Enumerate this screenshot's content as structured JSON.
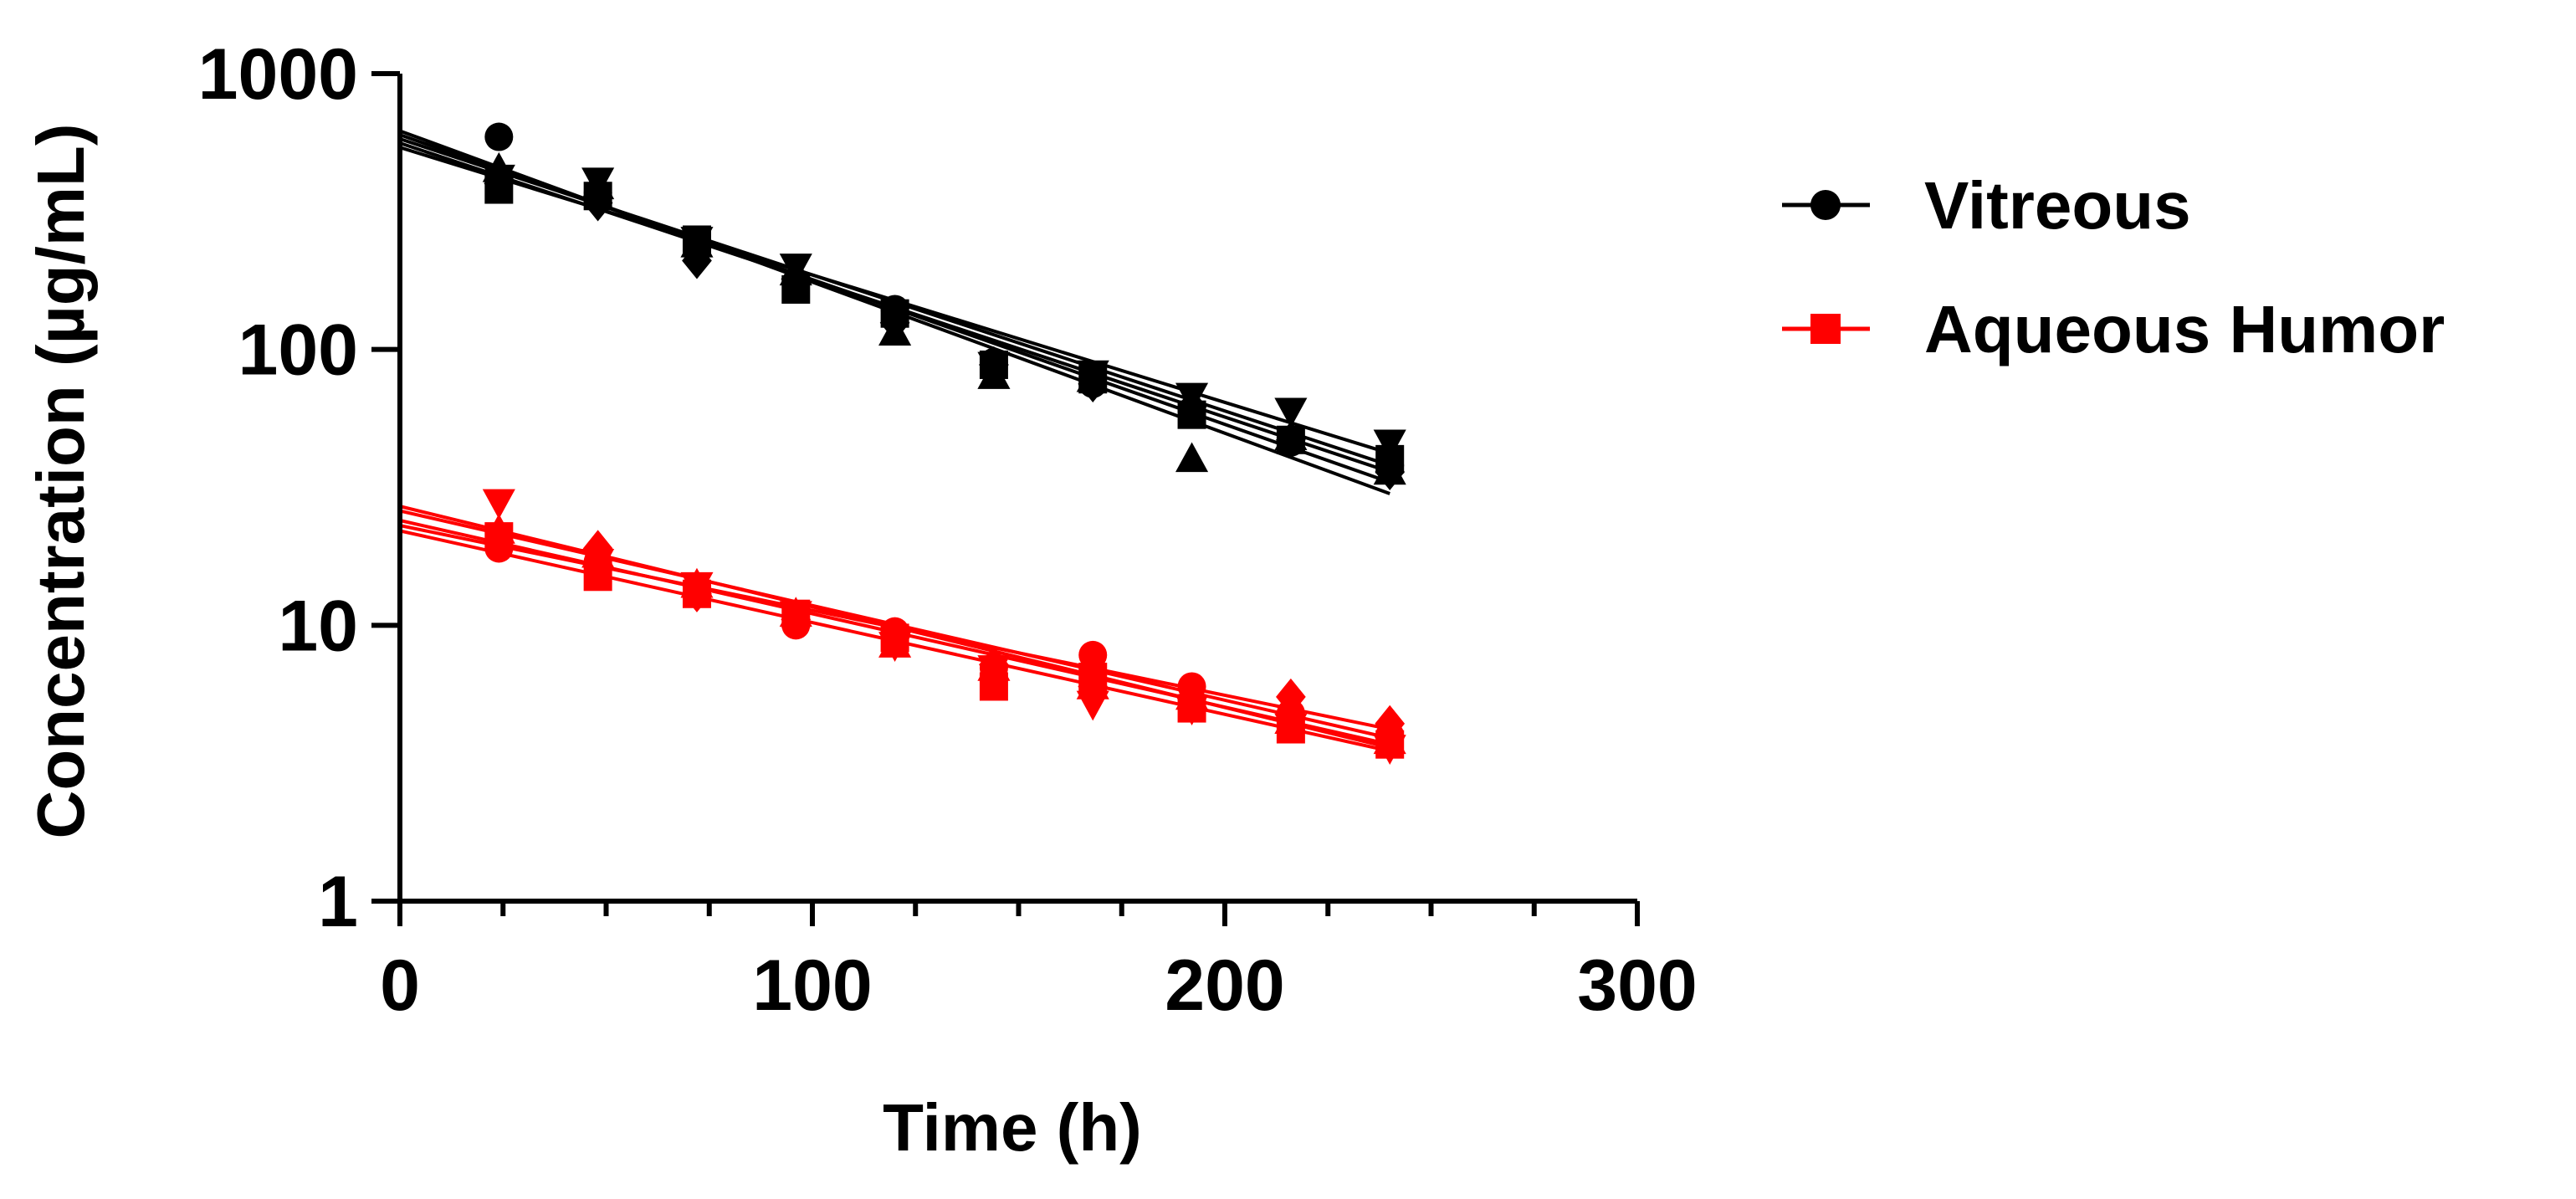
{
  "chart_data": {
    "type": "scatter",
    "yscale": "log",
    "xlabel": "Time (h)",
    "ylabel": "Concentration (µg/mL)",
    "xlim": [
      0,
      300
    ],
    "ylim": [
      1,
      1000
    ],
    "x_ticks": [
      0,
      100,
      200,
      300
    ],
    "x_tick_labels": [
      "0",
      "100",
      "200",
      "300"
    ],
    "y_ticks": [
      1,
      10,
      100,
      1000
    ],
    "y_tick_labels": [
      "1",
      "10",
      "100",
      "1000"
    ],
    "grid": false,
    "legend_position": "right",
    "series": [
      {
        "name": "Vitreous",
        "color": "#000000",
        "legend_marker": "circle",
        "replicates": [
          {
            "marker": "circle",
            "x": [
              24,
              48,
              72,
              96,
              120,
              144,
              168,
              192,
              216,
              240
            ],
            "y": [
              590,
              370,
              230,
              175,
              140,
              90,
              75,
              60,
              46,
              38
            ],
            "fit": [
              560,
              36
            ]
          },
          {
            "marker": "square",
            "x": [
              24,
              48,
              72,
              96,
              120,
              144,
              168,
              192,
              216,
              240
            ],
            "y": [
              380,
              360,
              250,
              165,
              135,
              88,
              78,
              58,
              47,
              40
            ],
            "fit": [
              580,
              38
            ]
          },
          {
            "marker": "triangle-up",
            "x": [
              24,
              48,
              72,
              96,
              120,
              144,
              168,
              192,
              216,
              240
            ],
            "y": [
              450,
              390,
              240,
              190,
              115,
              80,
              78,
              40,
              48,
              36
            ],
            "fit": [
              620,
              30
            ]
          },
          {
            "marker": "triangle-down",
            "x": [
              24,
              48,
              72,
              96,
              120,
              144,
              168,
              192,
              216,
              240
            ],
            "y": [
              420,
              410,
              250,
              200,
              130,
              88,
              82,
              68,
              60,
              46
            ],
            "fit": [
              540,
              42
            ]
          },
          {
            "marker": "diamond",
            "x": [
              24,
              48,
              72,
              96,
              120,
              144,
              168,
              192,
              216,
              240
            ],
            "y": [
              400,
              340,
              210,
              180,
              125,
              88,
              75,
              62,
              47,
              36
            ],
            "fit": [
              600,
              33
            ]
          }
        ]
      },
      {
        "name": "Aqueous Humor",
        "color": "#ff0000",
        "legend_marker": "square",
        "replicates": [
          {
            "marker": "circle",
            "x": [
              24,
              48,
              72,
              96,
              120,
              144,
              168,
              192,
              216,
              240
            ],
            "y": [
              19,
              17,
              13,
              10,
              9.5,
              7,
              7.8,
              6,
              4.8,
              4
            ],
            "fit": [
              24,
              3.7
            ]
          },
          {
            "marker": "square",
            "x": [
              24,
              48,
              72,
              96,
              120,
              144,
              168,
              192,
              216,
              240
            ],
            "y": [
              21,
              15,
              13,
              11,
              9,
              6,
              6.5,
              5,
              4.2,
              3.7
            ],
            "fit": [
              22,
              3.5
            ]
          },
          {
            "marker": "triangle-up",
            "x": [
              24,
              48,
              72,
              96,
              120,
              144,
              168,
              192,
              216,
              240
            ],
            "y": [
              22,
              18,
              14,
              11,
              8.5,
              7,
              6,
              5.5,
              4.5,
              3.8
            ],
            "fit": [
              26,
              3.9
            ]
          },
          {
            "marker": "triangle-down",
            "x": [
              24,
              48,
              72,
              96,
              120,
              144,
              168,
              192,
              216,
              240
            ],
            "y": [
              28,
              17,
              14,
              11,
              8.5,
              7,
              5.2,
              5,
              4.3,
              3.6
            ],
            "fit": [
              27,
              3.6
            ]
          },
          {
            "marker": "diamond",
            "x": [
              24,
              48,
              72,
              96,
              120,
              144,
              168,
              192,
              216,
              240
            ],
            "y": [
              20,
              19,
              13,
              10.5,
              9,
              7.2,
              6,
              5.5,
              5.5,
              4.4
            ],
            "fit": [
              23,
              4.2
            ]
          }
        ]
      }
    ]
  }
}
